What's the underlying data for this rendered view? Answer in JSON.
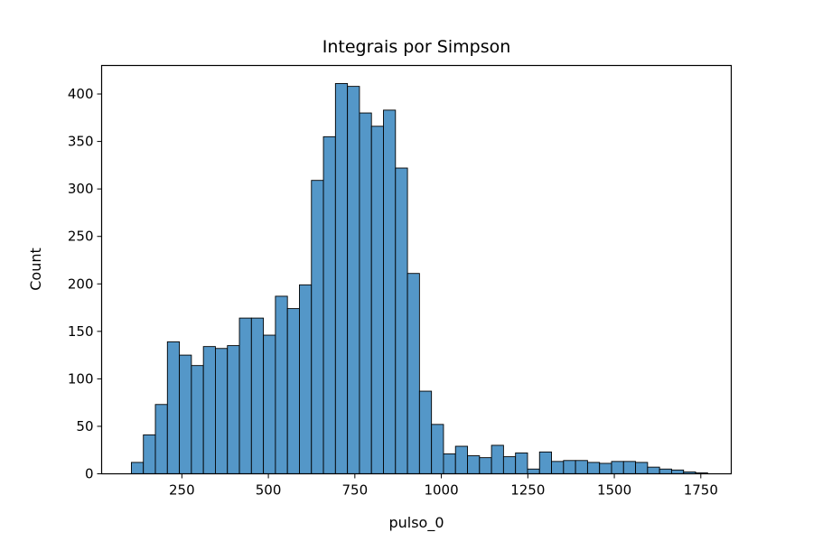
{
  "chart_data": {
    "type": "bar",
    "title": "Integrais por Simpson",
    "xlabel": "pulso_0",
    "ylabel": "Count",
    "xlim": [
      18,
      1838
    ],
    "ylim": [
      0,
      430
    ],
    "xticks": [
      250,
      500,
      750,
      1000,
      1250,
      1500,
      1750
    ],
    "yticks": [
      0,
      50,
      100,
      150,
      200,
      250,
      300,
      350,
      400
    ],
    "bin_start": 104,
    "bin_width": 34.7,
    "bar_color": "#5497c8",
    "edge_color": "#000000",
    "grid": false,
    "values": [
      12,
      41,
      73,
      139,
      125,
      114,
      134,
      132,
      135,
      164,
      164,
      146,
      187,
      174,
      199,
      309,
      355,
      411,
      408,
      380,
      366,
      383,
      322,
      211,
      87,
      52,
      21,
      29,
      19,
      17,
      30,
      18,
      22,
      5,
      23,
      13,
      14,
      14,
      12,
      11,
      13,
      13,
      12,
      7,
      5,
      4,
      2,
      1
    ]
  }
}
